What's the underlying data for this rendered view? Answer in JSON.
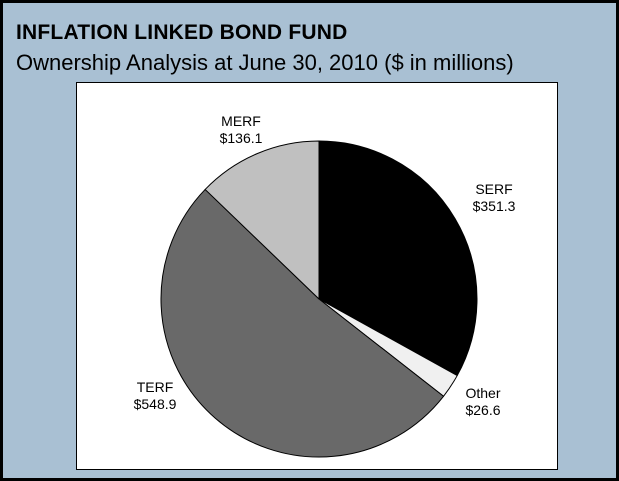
{
  "header": {
    "title": "INFLATION LINKED BOND FUND",
    "subtitle": "Ownership Analysis at June 30, 2010 ($ in millions)"
  },
  "chart_data": {
    "type": "pie",
    "title": "INFLATION LINKED BOND FUND",
    "subtitle": "Ownership Analysis at June 30, 2010 ($ in millions)",
    "start_angle": "12 o'clock",
    "direction": "clockwise",
    "slices": [
      {
        "label": "SERF",
        "value_label": "$351.3",
        "value": 351.3,
        "color": "#000000"
      },
      {
        "label": "Other",
        "value_label": "$26.6",
        "value": 26.6,
        "color": "#f0f0f0"
      },
      {
        "label": "TERF",
        "value_label": "$548.9",
        "value": 548.9,
        "color": "#696969"
      },
      {
        "label": "MERF",
        "value_label": "$136.1",
        "value": 136.1,
        "color": "#c0c0c0"
      }
    ]
  }
}
